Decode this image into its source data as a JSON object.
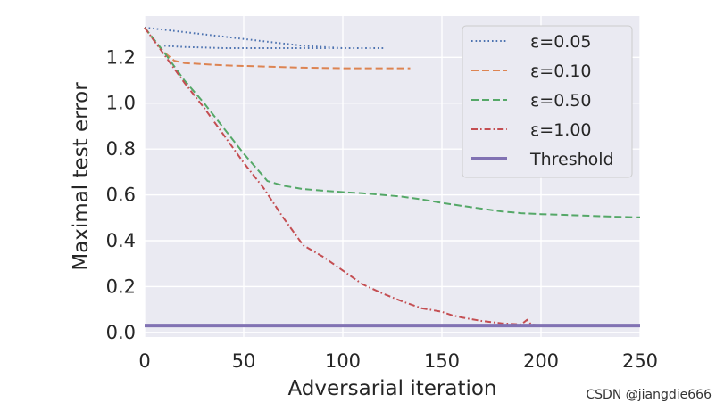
{
  "chart_data": {
    "type": "line",
    "title": "",
    "xlabel": "Adversarial iteration",
    "ylabel": "Maximal test error",
    "xlim": [
      0,
      250
    ],
    "ylim": [
      -0.02,
      1.38
    ],
    "xticks": [
      0,
      50,
      100,
      150,
      200,
      250
    ],
    "xtick_labels": [
      "0",
      "50",
      "100",
      "150",
      "200",
      "250"
    ],
    "yticks": [
      0.0,
      0.2,
      0.4,
      0.6,
      0.8,
      1.0,
      1.2
    ],
    "ytick_labels": [
      "0.0",
      "0.2",
      "0.4",
      "0.6",
      "0.8",
      "1.0",
      "1.2"
    ],
    "grid": true,
    "legend_position": "top-right",
    "series": [
      {
        "name": "ε=0.05",
        "legend_label": "ε=0.05",
        "color": "#4c72b0",
        "style": "dotted",
        "x": [
          0,
          10,
          20,
          40,
          60,
          80,
          100,
          120,
          100,
          80,
          60,
          40,
          20,
          10
        ],
        "y": [
          1.33,
          1.32,
          1.31,
          1.29,
          1.27,
          1.25,
          1.24,
          1.24,
          1.24,
          1.24,
          1.24,
          1.24,
          1.245,
          1.25
        ]
      },
      {
        "name": "ε=0.10",
        "legend_label": "ε=0.10",
        "color": "#dd8452",
        "style": "dashed",
        "x": [
          0,
          5,
          10,
          15,
          20,
          40,
          60,
          80,
          100,
          120,
          134
        ],
        "y": [
          1.33,
          1.27,
          1.22,
          1.185,
          1.175,
          1.165,
          1.16,
          1.155,
          1.152,
          1.152,
          1.152
        ]
      },
      {
        "name": "ε=0.50",
        "legend_label": "ε=0.50",
        "color": "#55a868",
        "style": "dashed",
        "x": [
          0,
          10,
          20,
          30,
          40,
          50,
          62,
          70,
          80,
          90,
          100,
          110,
          120,
          130,
          140,
          150,
          160,
          170,
          180,
          190,
          200,
          210,
          220,
          230,
          240,
          250
        ],
        "y": [
          1.33,
          1.22,
          1.1,
          1.0,
          0.89,
          0.78,
          0.66,
          0.64,
          0.625,
          0.618,
          0.612,
          0.607,
          0.6,
          0.592,
          0.58,
          0.565,
          0.552,
          0.54,
          0.528,
          0.52,
          0.516,
          0.513,
          0.51,
          0.507,
          0.504,
          0.502
        ]
      },
      {
        "name": "ε=1.00",
        "legend_label": "ε=1.00",
        "color": "#c44e52",
        "style": "dashdot",
        "x": [
          0,
          10,
          20,
          30,
          40,
          50,
          60,
          70,
          80,
          90,
          100,
          110,
          120,
          130,
          140,
          150,
          155,
          160,
          170,
          180,
          190,
          193,
          195,
          200,
          206
        ],
        "y": [
          1.33,
          1.21,
          1.09,
          0.98,
          0.86,
          0.74,
          0.63,
          0.5,
          0.38,
          0.33,
          0.27,
          0.21,
          0.17,
          0.135,
          0.105,
          0.09,
          0.075,
          0.065,
          0.05,
          0.04,
          0.035,
          0.055,
          0.035,
          0.03,
          0.03
        ]
      },
      {
        "name": "Threshold",
        "legend_label": "Threshold",
        "color": "#8172b3",
        "style": "solid",
        "x": [
          0,
          250
        ],
        "y": [
          0.03,
          0.03
        ]
      }
    ]
  },
  "watermark": "CSDN @jiangdie666"
}
